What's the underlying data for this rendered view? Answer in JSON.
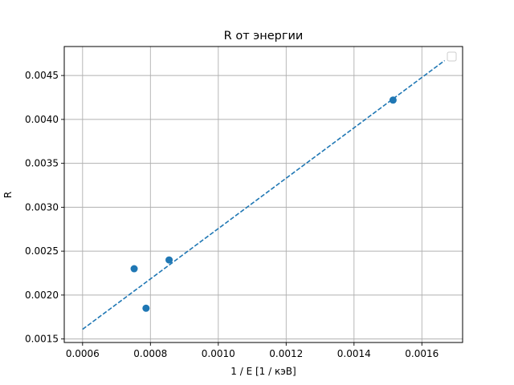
{
  "chart_data": {
    "type": "scatter",
    "title": "R от энергии",
    "xlabel": "1 / E [1 / кэВ]",
    "ylabel": "R",
    "xlim": [
      0.000546,
      0.00172
    ],
    "ylim": [
      0.00146,
      0.00483
    ],
    "xticks": [
      0.0006,
      0.0008,
      0.001,
      0.0012,
      0.0014,
      0.0016
    ],
    "xtick_labels": [
      "0.0006",
      "0.0008",
      "0.0010",
      "0.0012",
      "0.0014",
      "0.0016"
    ],
    "yticks": [
      0.0015,
      0.002,
      0.0025,
      0.003,
      0.0035,
      0.004,
      0.0045
    ],
    "ytick_labels": [
      "0.0015",
      "0.0020",
      "0.0025",
      "0.0030",
      "0.0035",
      "0.0040",
      "0.0045"
    ],
    "grid": true,
    "legend": "top-right",
    "points": [
      {
        "x": 0.000752,
        "y": 0.0023
      },
      {
        "x": 0.000787,
        "y": 0.00185
      },
      {
        "x": 0.000855,
        "y": 0.0024
      },
      {
        "x": 0.001515,
        "y": 0.00422
      }
    ],
    "fit_line": {
      "style": "dashed",
      "x": [
        0.0006,
        0.001667
      ],
      "y": [
        0.00161,
        0.00467
      ]
    },
    "colors": {
      "points": "#1f77b4",
      "line": "#1f77b4",
      "grid": "#b0b0b0"
    }
  }
}
